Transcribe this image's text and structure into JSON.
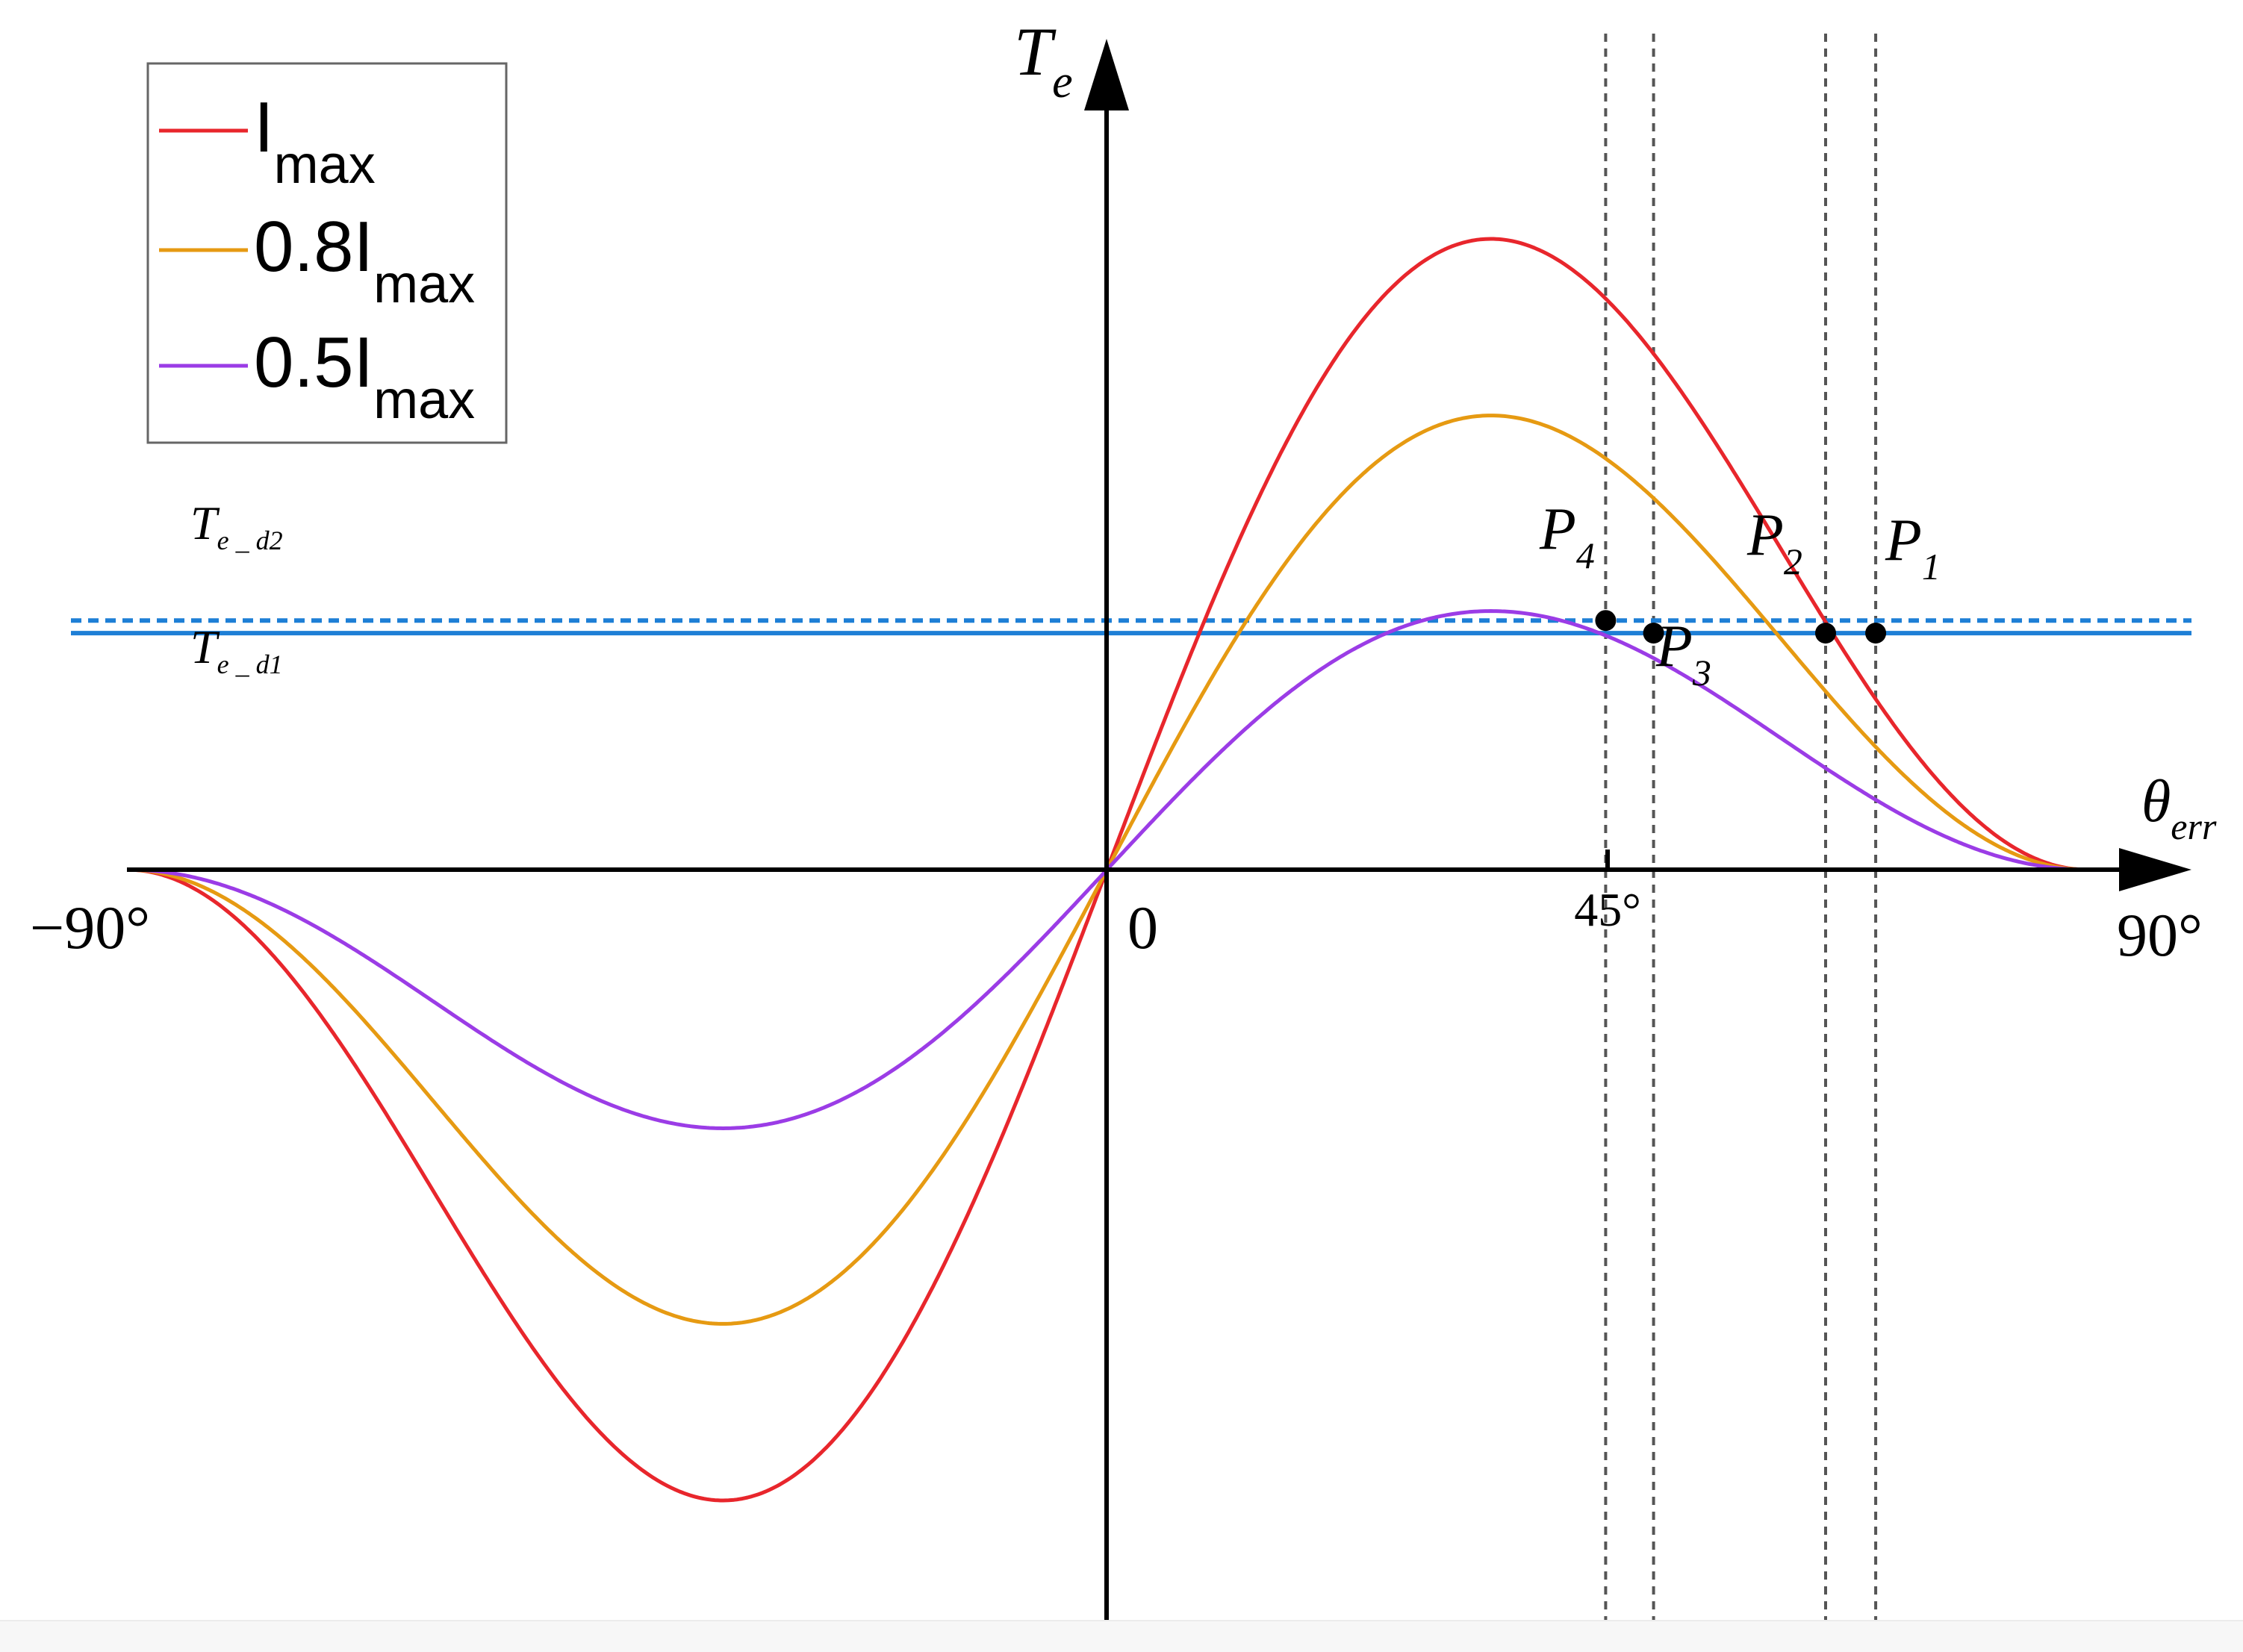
{
  "chart_data": {
    "type": "line",
    "title": "",
    "xlabel": {
      "symbol": "θ",
      "sub": "err"
    },
    "ylabel": {
      "symbol": "T",
      "sub": "e"
    },
    "xlim": [
      -90,
      90
    ],
    "x_tick_labels": [
      {
        "value": -90,
        "label": "−90°"
      },
      {
        "value": 0,
        "label": "0"
      },
      {
        "value": 45,
        "label": "45°"
      },
      {
        "value": 90,
        "label": "90°"
      }
    ],
    "grid": false,
    "legend": "top-left",
    "series": [
      {
        "name": "I",
        "name_sub": "max",
        "prefix": "",
        "color": "#e8262c",
        "peak": 1.0,
        "model": "k*sin(2θ)*cos(θ)"
      },
      {
        "name": "0.8I",
        "name_sub": "max",
        "prefix": "0.8",
        "color": "#e69a12",
        "peak": 0.72,
        "model": "k*sin(2θ)*cos(θ)"
      },
      {
        "name": "0.5I",
        "name_sub": "max",
        "prefix": "0.5",
        "color": "#9b3ce6",
        "peak": 0.41,
        "model": "k*sin(2θ)*cos(θ)"
      }
    ],
    "reference_lines": [
      {
        "name": "T_e_d2",
        "label_main": "T",
        "label_sub": "e _ d2",
        "y": 0.395,
        "style": "dashed",
        "color": "#1e7fd6"
      },
      {
        "name": "T_e_d1",
        "label_main": "T",
        "label_sub": "e _ d1",
        "y": 0.375,
        "style": "solid",
        "color": "#1e7fd6"
      }
    ],
    "points": [
      {
        "label": "P",
        "sub": "4",
        "x": 45.8,
        "y": 0.395
      },
      {
        "label": "P",
        "sub": "3",
        "x": 50.2,
        "y": 0.375
      },
      {
        "label": "P",
        "sub": "2",
        "x": 66.0,
        "y": 0.375
      },
      {
        "label": "P",
        "sub": "1",
        "x": 70.6,
        "y": 0.375
      }
    ],
    "vertical_guides_x": [
      45.8,
      50.2,
      66.0,
      70.6
    ]
  }
}
